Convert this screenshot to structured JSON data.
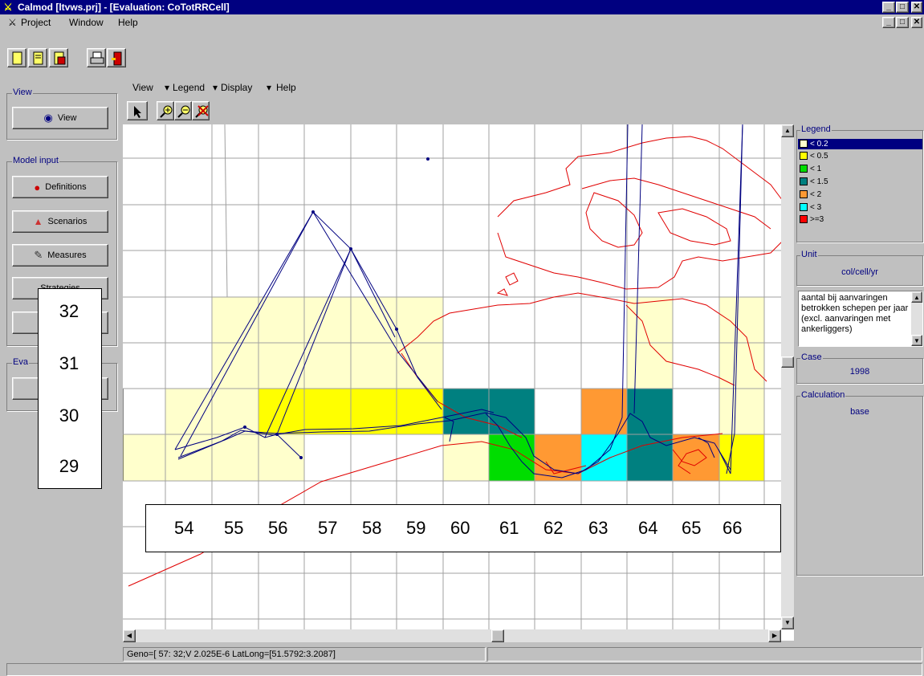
{
  "window": {
    "title": "Calmod [ltvws.prj] - [Evaluation: CoTotRRCell]",
    "min": "_",
    "max": "□",
    "close": "✕"
  },
  "menu": {
    "project": "Project",
    "window": "Window",
    "help": "Help"
  },
  "toolbar": {
    "buttons": [
      "new-file",
      "open-file",
      "save-file",
      "print",
      "exit"
    ]
  },
  "sidebar": {
    "view_group": "View",
    "view_button": "View",
    "model_input_group": "Model input",
    "definitions": "Definitions",
    "scenarios": "Scenarios",
    "measures": "Measures",
    "strategies": "Strategies",
    "eval_group": "Eva"
  },
  "map_menu": {
    "view": "View",
    "legend": "Legend",
    "display": "Display",
    "help": "Help"
  },
  "map_tools": [
    "pointer",
    "zoom-in",
    "zoom-out",
    "zoom-reset"
  ],
  "y_labels": [
    "32",
    "31",
    "30",
    "29"
  ],
  "x_labels": [
    "54",
    "55",
    "56",
    "57",
    "58",
    "59",
    "60",
    "61",
    "62",
    "63",
    "64",
    "65",
    "66"
  ],
  "legend": {
    "title": "Legend",
    "items": [
      {
        "label": "< 0.2",
        "color": "#ffffcc"
      },
      {
        "label": "< 0.5",
        "color": "#ffff00"
      },
      {
        "label": "< 1",
        "color": "#00dd00"
      },
      {
        "label": "< 1.5",
        "color": "#008080"
      },
      {
        "label": "< 2",
        "color": "#ff9933"
      },
      {
        "label": "< 3",
        "color": "#00ffff"
      },
      {
        "label": ">=3",
        "color": "#ff0000"
      }
    ]
  },
  "unit": {
    "title": "Unit",
    "value": "col/cell/yr"
  },
  "description": "aantal bij aanvaringen betrokken schepen per jaar (excl. aanvaringen met ankerliggers)",
  "case": {
    "title": "Case",
    "value": "1998"
  },
  "calculation": {
    "title": "Calculation",
    "value": "base"
  },
  "status": "Geno=[ 57: 32;V 2.025E-6 LatLong=[51.5792:3.2087]"
}
